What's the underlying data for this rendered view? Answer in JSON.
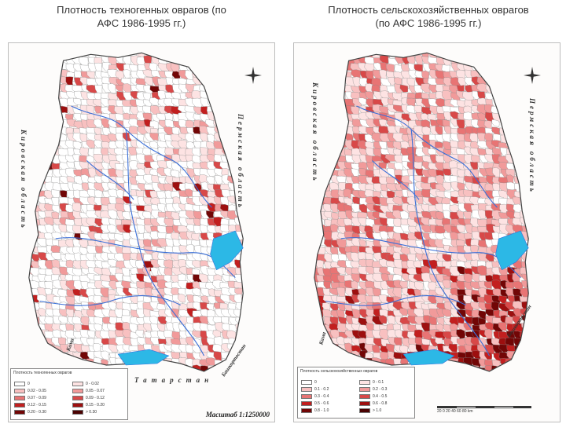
{
  "captions": {
    "left": "Плотность техногенных оврагов (по\nАФС 1986-1995 гг.)",
    "left_line1": "Плотность техногенных оврагов (по",
    "left_line2": "АФС 1986-1995 гг.)",
    "right_line1": "Плотность сельскохозяйственных оврагов",
    "right_line2": "(по АФС 1986-1995 гг.)"
  },
  "left_map": {
    "region_labels": {
      "west": "Кировская область",
      "east": "Пермская область",
      "south": "Татарстан",
      "southeast": "Башкортостан",
      "river_south": "Кама"
    },
    "legend_title": "Плотность техногенных оврагов",
    "legend_items": [
      {
        "label": "0",
        "color": "#ffffff"
      },
      {
        "label": "0 - 0.02",
        "color": "#fde3e3"
      },
      {
        "label": "0.02 - 0.05",
        "color": "#f8c0c0"
      },
      {
        "label": "0.05 - 0.07",
        "color": "#f19a9a"
      },
      {
        "label": "0.07 - 0.09",
        "color": "#e87474"
      },
      {
        "label": "0.09 - 0.12",
        "color": "#d84848"
      },
      {
        "label": "0.12 - 0.15",
        "color": "#c21f1f"
      },
      {
        "label": "0.15 - 0.20",
        "color": "#9d0f0f"
      },
      {
        "label": "0.20 - 0.30",
        "color": "#720606"
      },
      {
        "label": "> 0.30",
        "color": "#4a0202"
      }
    ],
    "scale": "Масштаб 1:1250000"
  },
  "right_map": {
    "region_labels": {
      "west": "Кировская область",
      "east": "Пермская область",
      "southeast": "Башкортостан",
      "river_south": "Кама"
    },
    "legend_title": "Плотность сельскохозяйственных оврагов",
    "legend_items": [
      {
        "label": "0",
        "color": "#ffffff"
      },
      {
        "label": "0 - 0.1",
        "color": "#fde3e3"
      },
      {
        "label": "0.1 - 0.2",
        "color": "#f8c0c0"
      },
      {
        "label": "0.2 - 0.3",
        "color": "#f19a9a"
      },
      {
        "label": "0.3 - 0.4",
        "color": "#e87474"
      },
      {
        "label": "0.4 - 0.5",
        "color": "#d84848"
      },
      {
        "label": "0.5 - 0.6",
        "color": "#c21f1f"
      },
      {
        "label": "0.6 - 0.8",
        "color": "#9d0f0f"
      },
      {
        "label": "0.8 - 1.0",
        "color": "#720606"
      },
      {
        "label": "> 1.0",
        "color": "#4a0202"
      }
    ],
    "scale_numbers": "20 0 20 40 60 80 km"
  },
  "colors": {
    "river": "#3a6fd8",
    "water": "#2cb8e6",
    "boundary": "#555555",
    "light": "#fde3e3",
    "mid": "#f19a9a",
    "dark": "#c21f1f"
  }
}
